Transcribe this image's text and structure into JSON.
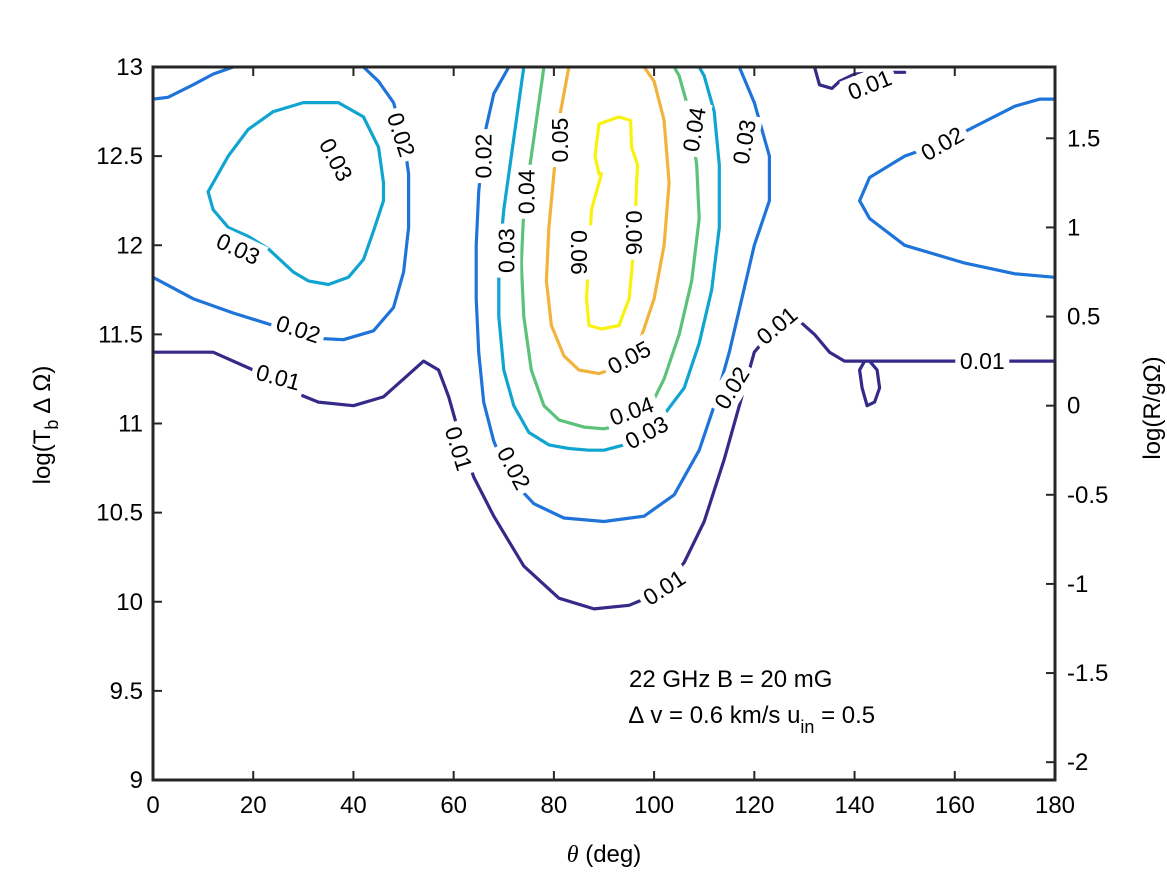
{
  "chart_data": {
    "type": "contour",
    "xlabel": "θ (deg)",
    "ylabel_left": "log(T_b ∆ Ω)",
    "ylabel_right": "log(R/gΩ)",
    "xlim": [
      0,
      180
    ],
    "ylim_left": [
      9,
      13
    ],
    "xticks": [
      0,
      20,
      40,
      60,
      80,
      100,
      120,
      140,
      160,
      180
    ],
    "yticks_left": [
      9,
      9.5,
      10,
      10.5,
      11,
      11.5,
      12,
      12.5,
      13
    ],
    "right_axis": {
      "offset": -11.1,
      "ticks": [
        -2,
        -1.5,
        -1,
        -0.5,
        0,
        0.5,
        1,
        1.5
      ]
    },
    "annotation": {
      "line1": "22 GHz  B = 20 mG",
      "line2_prefix": "∆ v = 0.6 km/s  u",
      "line2_sub": "in",
      "line2_suffix": " = 0.5"
    },
    "levels": [
      {
        "level": 0.01,
        "color": "#352a87",
        "paths": [
          [
            [
              0,
              11.4
            ],
            [
              12,
              11.4
            ],
            [
              20,
              11.3
            ],
            [
              26,
              11.2
            ],
            [
              33,
              11.12
            ],
            [
              40,
              11.1
            ],
            [
              46,
              11.15
            ],
            [
              50,
              11.25
            ],
            [
              54,
              11.35
            ],
            [
              57,
              11.3
            ],
            [
              59,
              11.15
            ],
            [
              61,
              10.95
            ],
            [
              64,
              10.7
            ],
            [
              68,
              10.48
            ],
            [
              74,
              10.2
            ],
            [
              81,
              10.02
            ],
            [
              88,
              9.96
            ],
            [
              95,
              9.98
            ],
            [
              101,
              10.05
            ],
            [
              106,
              10.22
            ],
            [
              110,
              10.45
            ],
            [
              114,
              10.8
            ],
            [
              117,
              11.1
            ],
            [
              120,
              11.4
            ],
            [
              123,
              11.5
            ],
            [
              128,
              11.6
            ],
            [
              132,
              11.5
            ],
            [
              135,
              11.4
            ],
            [
              138,
              11.35
            ],
            [
              141,
              11.35
            ],
            [
              143,
              11.35
            ],
            [
              144.5,
              11.3
            ],
            [
              145,
              11.2
            ],
            [
              144,
              11.12
            ],
            [
              142.5,
              11.1
            ],
            [
              141.5,
              11.2
            ],
            [
              141,
              11.3
            ],
            [
              142,
              11.35
            ],
            [
              145,
              11.35
            ],
            [
              150,
              11.35
            ],
            [
              160,
              11.35
            ],
            [
              170,
              11.35
            ],
            [
              180,
              11.35
            ]
          ],
          [
            [
              132,
              13
            ],
            [
              133,
              12.9
            ],
            [
              135.5,
              12.88
            ],
            [
              137,
              12.92
            ],
            [
              140,
              12.96
            ],
            [
              145,
              12.97
            ],
            [
              150,
              12.97
            ]
          ]
        ],
        "labels": [
          {
            "x": 25,
            "y": 11.26,
            "text": "0.01",
            "rot": 15
          },
          {
            "x": 61,
            "y": 10.86,
            "text": "0.01",
            "rot": 73
          },
          {
            "x": 102,
            "y": 10.08,
            "text": "0.01",
            "rot": -33
          },
          {
            "x": 124.5,
            "y": 11.55,
            "text": "0.01",
            "rot": -40
          },
          {
            "x": 143,
            "y": 12.9,
            "text": "0.01",
            "rot": -22
          },
          {
            "x": 165.5,
            "y": 11.35,
            "text": "0.01",
            "rot": 0
          }
        ]
      },
      {
        "level": 0.02,
        "color": "#1f74d9",
        "paths": [
          [
            [
              0,
              12.82
            ],
            [
              3,
              12.83
            ],
            [
              8,
              12.9
            ],
            [
              12,
              12.96
            ],
            [
              16,
              13
            ]
          ],
          [
            [
              0,
              11.82
            ],
            [
              8,
              11.7
            ],
            [
              16,
              11.62
            ],
            [
              24,
              11.55
            ],
            [
              31,
              11.48
            ],
            [
              38,
              11.47
            ],
            [
              44,
              11.52
            ],
            [
              48,
              11.65
            ],
            [
              50,
              11.85
            ],
            [
              51,
              12.1
            ],
            [
              51,
              12.4
            ],
            [
              50,
              12.6
            ],
            [
              48,
              12.8
            ],
            [
              45,
              12.92
            ],
            [
              42,
              13
            ]
          ],
          [
            [
              71,
              13
            ],
            [
              68,
              12.85
            ],
            [
              66,
              12.6
            ],
            [
              65,
              12.3
            ],
            [
              64.5,
              12
            ],
            [
              64.5,
              11.7
            ],
            [
              65,
              11.4
            ],
            [
              66,
              11.12
            ],
            [
              68,
              10.9
            ],
            [
              71,
              10.7
            ],
            [
              76,
              10.55
            ],
            [
              82,
              10.47
            ],
            [
              90,
              10.45
            ],
            [
              98,
              10.48
            ],
            [
              104,
              10.6
            ],
            [
              109,
              10.85
            ],
            [
              112,
              11.1
            ],
            [
              115,
              11.4
            ],
            [
              117.5,
              11.7
            ],
            [
              120,
              12
            ],
            [
              123,
              12.25
            ],
            [
              123,
              12.5
            ],
            [
              120,
              12.8
            ],
            [
              117,
              13
            ]
          ],
          [
            [
              180,
              11.82
            ],
            [
              172,
              11.84
            ],
            [
              162,
              11.9
            ],
            [
              150,
              12
            ],
            [
              143,
              12.15
            ],
            [
              141,
              12.25
            ],
            [
              143,
              12.38
            ],
            [
              150,
              12.5
            ],
            [
              158,
              12.58
            ],
            [
              165,
              12.68
            ],
            [
              172,
              12.78
            ],
            [
              177,
              12.82
            ],
            [
              180,
              12.82
            ]
          ]
        ],
        "labels": [
          {
            "x": 49.5,
            "y": 12.62,
            "text": "0.02",
            "rot": 72
          },
          {
            "x": 29,
            "y": 11.53,
            "text": "0.02",
            "rot": 18
          },
          {
            "x": 66,
            "y": 12.5,
            "text": "0.02",
            "rot": -90
          },
          {
            "x": 72,
            "y": 10.75,
            "text": "0.02",
            "rot": 62
          },
          {
            "x": 115.5,
            "y": 11.2,
            "text": "0.02",
            "rot": -58
          },
          {
            "x": 157.5,
            "y": 12.57,
            "text": "0.02",
            "rot": -30
          }
        ]
      },
      {
        "level": 0.03,
        "color": "#10a4d0",
        "paths": [
          [
            [
              46,
              12.35
            ],
            [
              45,
              12.55
            ],
            [
              42,
              12.72
            ],
            [
              37,
              12.8
            ],
            [
              30,
              12.8
            ],
            [
              24,
              12.75
            ],
            [
              19,
              12.65
            ],
            [
              15,
              12.5
            ],
            [
              12,
              12.35
            ],
            [
              11,
              12.3
            ],
            [
              12,
              12.2
            ],
            [
              15,
              12.1
            ],
            [
              19,
              12.05
            ],
            [
              23,
              11.98
            ],
            [
              28,
              11.85
            ],
            [
              31,
              11.8
            ],
            [
              35,
              11.78
            ],
            [
              39,
              11.82
            ],
            [
              42,
              11.92
            ],
            [
              44,
              12.08
            ],
            [
              46,
              12.25
            ],
            [
              46,
              12.35
            ]
          ],
          [
            [
              74,
              13
            ],
            [
              73,
              12.8
            ],
            [
              71.5,
              12.5
            ],
            [
              70,
              12.2
            ],
            [
              69,
              11.9
            ],
            [
              69,
              11.6
            ],
            [
              70,
              11.3
            ],
            [
              72,
              11.1
            ],
            [
              75,
              10.95
            ],
            [
              79,
              10.88
            ],
            [
              83,
              10.86
            ],
            [
              87,
              10.85
            ],
            [
              90,
              10.85
            ],
            [
              94,
              10.88
            ],
            [
              98,
              10.93
            ],
            [
              102,
              11.05
            ],
            [
              106,
              11.2
            ],
            [
              109,
              11.45
            ],
            [
              111.5,
              11.75
            ],
            [
              113,
              12.1
            ],
            [
              113,
              12.45
            ],
            [
              112,
              12.75
            ],
            [
              110,
              12.95
            ],
            [
              109,
              13
            ]
          ]
        ],
        "labels": [
          {
            "x": 36.5,
            "y": 12.48,
            "text": "0.03",
            "rot": 62
          },
          {
            "x": 17,
            "y": 11.98,
            "text": "0.03",
            "rot": 25
          },
          {
            "x": 70.5,
            "y": 11.97,
            "text": "0.03",
            "rot": -90
          },
          {
            "x": 98.5,
            "y": 10.95,
            "text": "0.03",
            "rot": -28
          },
          {
            "x": 118,
            "y": 12.58,
            "text": "0.03",
            "rot": -80
          }
        ]
      },
      {
        "level": 0.04,
        "color": "#5cc27a",
        "paths": [
          [
            [
              78,
              13
            ],
            [
              77,
              12.8
            ],
            [
              75.5,
              12.5
            ],
            [
              74,
              12.2
            ],
            [
              73.5,
              11.9
            ],
            [
              74,
              11.6
            ],
            [
              75.5,
              11.3
            ],
            [
              78,
              11.1
            ],
            [
              81,
              11.02
            ],
            [
              86,
              10.98
            ],
            [
              90,
              10.97
            ],
            [
              95,
              11
            ],
            [
              99,
              11.08
            ],
            [
              102,
              11.25
            ],
            [
              105,
              11.5
            ],
            [
              107.5,
              11.8
            ],
            [
              109,
              12.15
            ],
            [
              108.5,
              12.45
            ],
            [
              107,
              12.75
            ],
            [
              105,
              12.95
            ],
            [
              104,
              13
            ]
          ]
        ],
        "labels": [
          {
            "x": 74.5,
            "y": 12.3,
            "text": "0.04",
            "rot": -90
          },
          {
            "x": 95.5,
            "y": 11.07,
            "text": "0.04",
            "rot": -20
          },
          {
            "x": 108,
            "y": 12.65,
            "text": "0.04",
            "rot": -80
          }
        ]
      },
      {
        "level": 0.05,
        "color": "#f3b23c",
        "paths": [
          [
            [
              83,
              13
            ],
            [
              81,
              12.7
            ],
            [
              80,
              12.4
            ],
            [
              79,
              12.1
            ],
            [
              78.5,
              11.8
            ],
            [
              79.5,
              11.55
            ],
            [
              82,
              11.38
            ],
            [
              85,
              11.3
            ],
            [
              89,
              11.28
            ],
            [
              93,
              11.32
            ],
            [
              97,
              11.45
            ],
            [
              100,
              11.7
            ],
            [
              102,
              12
            ],
            [
              103,
              12.35
            ],
            [
              102,
              12.7
            ],
            [
              100,
              12.92
            ],
            [
              98,
              13
            ]
          ]
        ],
        "labels": [
          {
            "x": 81.2,
            "y": 12.59,
            "text": "0.05",
            "rot": -90
          },
          {
            "x": 95,
            "y": 11.37,
            "text": "0.05",
            "rot": -28
          }
        ]
      },
      {
        "level": 0.06,
        "color": "#f8f20e",
        "paths": [
          [
            [
              87.5,
              12.2
            ],
            [
              87,
              11.95
            ],
            [
              86.5,
              11.7
            ],
            [
              87,
              11.55
            ],
            [
              89.5,
              11.53
            ],
            [
              93,
              11.55
            ],
            [
              95,
              11.7
            ],
            [
              96,
              12
            ],
            [
              96.3,
              12.2
            ],
            [
              96.5,
              12.35
            ],
            [
              96.7,
              12.45
            ],
            [
              95.5,
              12.55
            ],
            [
              95.3,
              12.7
            ],
            [
              93,
              12.72
            ],
            [
              89,
              12.68
            ],
            [
              88.2,
              12.5
            ],
            [
              89,
              12.4
            ],
            [
              89.5,
              12.4
            ],
            [
              87.5,
              12.2
            ]
          ]
        ],
        "labels": [
          {
            "x": 85,
            "y": 11.96,
            "text": "0.06",
            "rot": 90
          },
          {
            "x": 96,
            "y": 12.07,
            "text": "0.06",
            "rot": 90
          }
        ]
      }
    ]
  }
}
